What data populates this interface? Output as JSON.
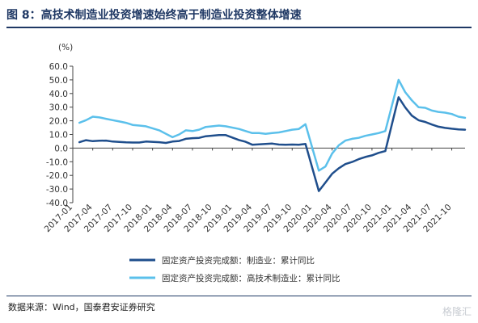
{
  "figure": {
    "title": "图 8：高技术制造业投资增速始终高于制造业投资整体增速",
    "source": "数据来源：Wind，国泰君安证券研究",
    "watermark": "格隆汇"
  },
  "colors": {
    "title": "#1f3864",
    "manufacturing": "#1f4e8c",
    "high_tech": "#5bc0eb"
  },
  "chart_data": {
    "type": "line",
    "title": "",
    "xlabel": "",
    "ylabel": "(%)",
    "ylim": [
      -40,
      60
    ],
    "yticks": [
      60,
      50,
      40,
      30,
      20,
      10,
      0,
      -10,
      -20,
      -30,
      -40
    ],
    "ytick_labels": [
      "60.0",
      "50.0",
      "40.0",
      "30.0",
      "20.0",
      "10.0",
      "0.0",
      "-10.0",
      "-20.0",
      "-30.0",
      "-40.0"
    ],
    "grid": false,
    "legend": "bottom-center",
    "x_ticks": [
      "2017-01",
      "2017-04",
      "2017-07",
      "2017-10",
      "2018-01",
      "2018-04",
      "2018-07",
      "2018-10",
      "2019-01",
      "2019-04",
      "2019-07",
      "2019-10",
      "2020-01",
      "2020-04",
      "2020-07",
      "2020-10",
      "2021-01",
      "2021-04",
      "2021-07",
      "2021-10"
    ],
    "x": [
      "2017-02",
      "2017-03",
      "2017-04",
      "2017-05",
      "2017-06",
      "2017-07",
      "2017-08",
      "2017-09",
      "2017-10",
      "2017-11",
      "2017-12",
      "2018-02",
      "2018-03",
      "2018-04",
      "2018-05",
      "2018-06",
      "2018-07",
      "2018-08",
      "2018-09",
      "2018-10",
      "2018-11",
      "2018-12",
      "2019-02",
      "2019-03",
      "2019-04",
      "2019-05",
      "2019-06",
      "2019-07",
      "2019-08",
      "2019-09",
      "2019-10",
      "2019-11",
      "2019-12",
      "2020-02",
      "2020-03",
      "2020-04",
      "2020-05",
      "2020-06",
      "2020-07",
      "2020-08",
      "2020-09",
      "2020-10",
      "2020-11",
      "2020-12",
      "2021-02",
      "2021-03",
      "2021-04",
      "2021-05",
      "2021-06",
      "2021-07",
      "2021-08",
      "2021-09",
      "2021-10",
      "2021-11",
      "2021-12"
    ],
    "series": [
      {
        "name": "固定资产投资完成额：制造业：累计同比",
        "values": [
          4.3,
          5.8,
          5.1,
          5.4,
          5.5,
          4.8,
          4.5,
          4.2,
          4.1,
          4.1,
          4.8,
          4.3,
          3.8,
          4.8,
          5.2,
          6.8,
          7.3,
          7.5,
          8.7,
          9.1,
          9.5,
          9.5,
          5.9,
          4.6,
          2.5,
          2.7,
          3.0,
          3.3,
          2.6,
          2.5,
          2.6,
          2.5,
          3.1,
          -31.5,
          -25.2,
          -18.8,
          -14.8,
          -11.7,
          -10.2,
          -8.1,
          -6.5,
          -5.3,
          -3.5,
          -2.2,
          37.3,
          29.8,
          23.8,
          20.4,
          19.2,
          17.3,
          15.7,
          14.8,
          14.2,
          13.7,
          13.5
        ]
      },
      {
        "name": "固定资产投资完成额：高技术制造业：累计同比",
        "values": [
          18.6,
          20.5,
          23.0,
          22.5,
          21.5,
          20.5,
          19.5,
          18.5,
          17.0,
          16.5,
          16.0,
          13.0,
          10.5,
          8.0,
          10.0,
          13.0,
          12.5,
          13.5,
          15.5,
          16.0,
          16.5,
          16.0,
          14.0,
          12.5,
          11.0,
          11.0,
          10.5,
          11.0,
          11.5,
          12.5,
          13.5,
          14.0,
          17.5,
          -16.5,
          -13.5,
          -4.0,
          2.0,
          5.5,
          6.8,
          7.5,
          9.0,
          10.0,
          11.0,
          12.5,
          50.0,
          41.0,
          35.0,
          30.0,
          29.5,
          27.5,
          26.5,
          26.0,
          25.0,
          23.0,
          22.2
        ]
      }
    ]
  }
}
